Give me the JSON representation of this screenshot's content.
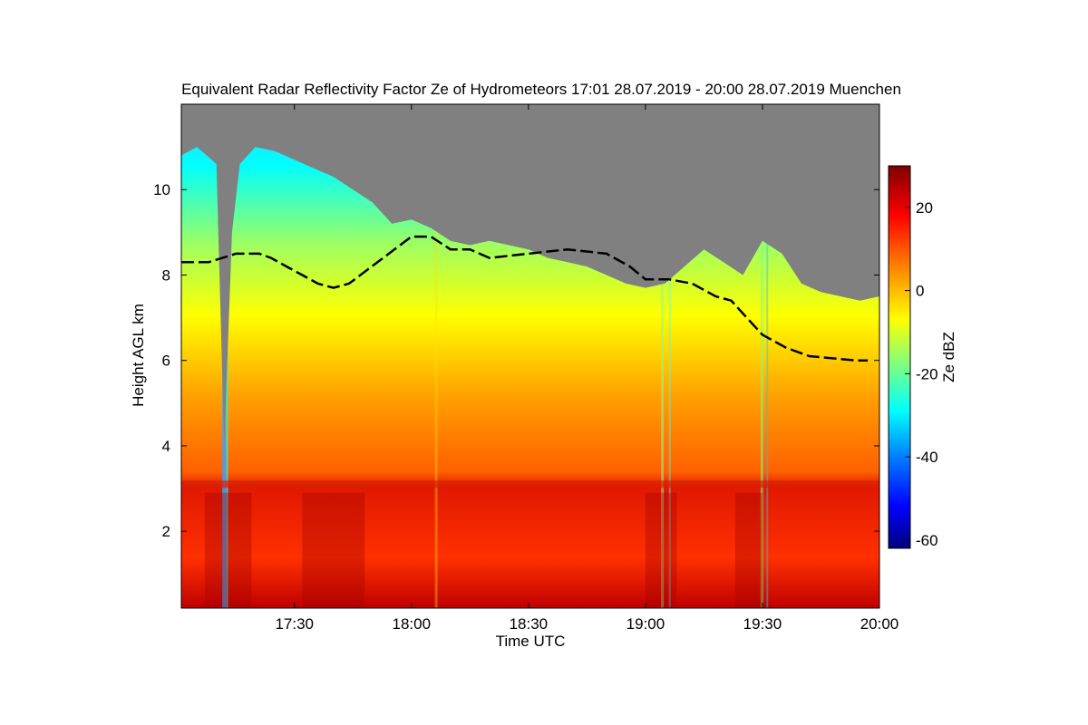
{
  "chart_data": {
    "type": "heatmap",
    "title": "Equivalent Radar Reflectivity Factor Ze of Hydrometeors   17:01 28.07.2019 - 20:00 28.07.2019 Muenchen",
    "xlabel": "Time UTC",
    "ylabel": "Height AGL km",
    "xlim_minutes_utc": [
      1021,
      1200
    ],
    "ylim_km": [
      0.2,
      12.0
    ],
    "x_ticks": [
      {
        "label": "17:30",
        "value": 1050
      },
      {
        "label": "18:00",
        "value": 1080
      },
      {
        "label": "18:30",
        "value": 1110
      },
      {
        "label": "19:00",
        "value": 1140
      },
      {
        "label": "19:30",
        "value": 1170
      },
      {
        "label": "20:00",
        "value": 1200
      }
    ],
    "y_ticks": [
      {
        "label": "2",
        "value": 2
      },
      {
        "label": "4",
        "value": 4
      },
      {
        "label": "6",
        "value": 6
      },
      {
        "label": "8",
        "value": 8
      },
      {
        "label": "10",
        "value": 10
      }
    ],
    "colorbar": {
      "label": "Ze dBZ",
      "range": [
        -62,
        30
      ],
      "ticks": [
        {
          "label": "20",
          "value": 20
        },
        {
          "label": "0",
          "value": 0
        },
        {
          "label": "-20",
          "value": -20
        },
        {
          "label": "-40",
          "value": -40
        },
        {
          "label": "-60",
          "value": -60
        }
      ],
      "colormap": [
        "#00007f",
        "#0000ff",
        "#007fff",
        "#00ffff",
        "#7fff7f",
        "#ffff00",
        "#ff7f00",
        "#ff0000",
        "#7f0000"
      ]
    },
    "no_signal_color": "#808080",
    "echo_top_km": [
      [
        1021,
        10.8
      ],
      [
        1025,
        11.0
      ],
      [
        1030,
        10.6
      ],
      [
        1032,
        4.0
      ],
      [
        1034,
        9.0
      ],
      [
        1036,
        10.6
      ],
      [
        1040,
        11.0
      ],
      [
        1045,
        10.9
      ],
      [
        1050,
        10.7
      ],
      [
        1055,
        10.5
      ],
      [
        1060,
        10.3
      ],
      [
        1065,
        10.0
      ],
      [
        1070,
        9.7
      ],
      [
        1075,
        9.2
      ],
      [
        1080,
        9.3
      ],
      [
        1085,
        9.1
      ],
      [
        1090,
        8.8
      ],
      [
        1095,
        8.7
      ],
      [
        1100,
        8.8
      ],
      [
        1105,
        8.7
      ],
      [
        1110,
        8.6
      ],
      [
        1115,
        8.4
      ],
      [
        1120,
        8.3
      ],
      [
        1125,
        8.2
      ],
      [
        1130,
        8.0
      ],
      [
        1135,
        7.8
      ],
      [
        1140,
        7.7
      ],
      [
        1145,
        7.8
      ],
      [
        1150,
        8.2
      ],
      [
        1155,
        8.6
      ],
      [
        1160,
        8.3
      ],
      [
        1165,
        8.0
      ],
      [
        1170,
        8.8
      ],
      [
        1175,
        8.5
      ],
      [
        1180,
        7.8
      ],
      [
        1185,
        7.6
      ],
      [
        1190,
        7.5
      ],
      [
        1195,
        7.4
      ],
      [
        1200,
        7.5
      ]
    ],
    "melting_layer_km": 3.1,
    "mode": "Black dashed trace: detected cloud top / ice layer boundary",
    "cloud_top_line_km": [
      [
        1021,
        8.3
      ],
      [
        1028,
        8.3
      ],
      [
        1035,
        8.5
      ],
      [
        1041,
        8.5
      ],
      [
        1044,
        8.4
      ],
      [
        1048,
        8.2
      ],
      [
        1052,
        8.0
      ],
      [
        1056,
        7.8
      ],
      [
        1060,
        7.7
      ],
      [
        1064,
        7.8
      ],
      [
        1080,
        8.9
      ],
      [
        1085,
        8.9
      ],
      [
        1090,
        8.6
      ],
      [
        1095,
        8.6
      ],
      [
        1100,
        8.4
      ],
      [
        1110,
        8.5
      ],
      [
        1120,
        8.6
      ],
      [
        1130,
        8.5
      ],
      [
        1136,
        8.2
      ],
      [
        1140,
        7.9
      ],
      [
        1146,
        7.9
      ],
      [
        1152,
        7.8
      ],
      [
        1158,
        7.5
      ],
      [
        1162,
        7.4
      ],
      [
        1166,
        7.0
      ],
      [
        1170,
        6.6
      ],
      [
        1176,
        6.3
      ],
      [
        1182,
        6.1
      ],
      [
        1188,
        6.05
      ],
      [
        1194,
        6.0
      ],
      [
        1197,
        6.0
      ]
    ]
  }
}
